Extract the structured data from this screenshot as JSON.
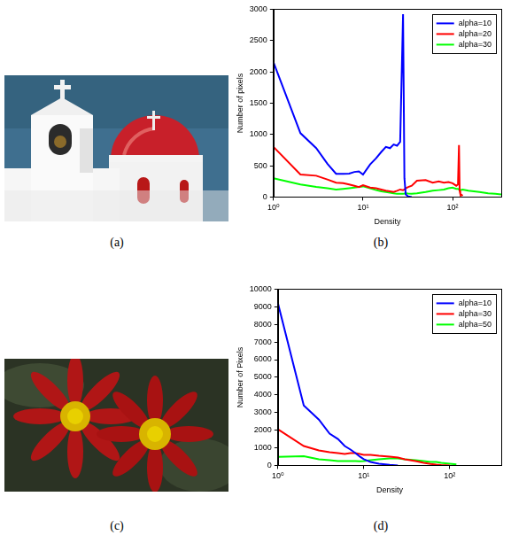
{
  "captions": [
    "(a)",
    "(b)",
    "(c)",
    "(d)"
  ],
  "chart_data": [
    {
      "type": "line",
      "log": "x",
      "grid": false,
      "legend": "upper right",
      "x_label": "Density",
      "y_label": "Number of pixels",
      "xlim": [
        1,
        350
      ],
      "ylim": [
        0,
        3000
      ],
      "xticks": [
        {
          "value": 1,
          "label": "10⁰"
        },
        {
          "value": 10,
          "label": "10¹"
        },
        {
          "value": 100,
          "label": "10²"
        }
      ],
      "yticks": [
        0,
        500,
        1000,
        1500,
        2000,
        2500,
        3000
      ],
      "x": [
        1,
        2,
        3,
        4,
        5,
        6,
        7,
        8,
        9,
        10,
        12,
        14,
        16,
        18,
        20,
        22,
        24,
        26,
        28,
        29,
        30,
        32,
        35,
        40,
        50,
        60,
        70,
        80,
        90,
        100,
        110,
        115,
        118,
        120,
        122,
        130,
        150,
        200,
        250,
        300,
        350
      ],
      "series": [
        {
          "name": "alpha=10",
          "color": "#0000ff",
          "values": [
            2150,
            1020,
            780,
            530,
            370,
            370,
            375,
            400,
            410,
            360,
            520,
            620,
            720,
            800,
            780,
            840,
            820,
            880,
            2920,
            300,
            40,
            10,
            0,
            null,
            null,
            null,
            null,
            null,
            null,
            null,
            null,
            null,
            null,
            null,
            null,
            null,
            null,
            null,
            null,
            null,
            null
          ]
        },
        {
          "name": "alpha=20",
          "color": "#ff0000",
          "values": [
            800,
            360,
            340,
            280,
            230,
            220,
            200,
            180,
            160,
            190,
            150,
            140,
            120,
            100,
            90,
            80,
            100,
            120,
            110,
            120,
            140,
            160,
            180,
            260,
            270,
            230,
            250,
            230,
            240,
            220,
            180,
            200,
            830,
            100,
            50,
            20,
            null,
            null,
            null,
            null,
            null
          ]
        },
        {
          "name": "alpha=30",
          "color": "#00ff00",
          "values": [
            300,
            200,
            160,
            140,
            120,
            130,
            140,
            150,
            160,
            170,
            140,
            110,
            90,
            80,
            70,
            60,
            50,
            50,
            50,
            55,
            60,
            55,
            50,
            60,
            80,
            100,
            110,
            120,
            140,
            150,
            130,
            130,
            120,
            110,
            110,
            120,
            100,
            80,
            60,
            50,
            40
          ]
        }
      ]
    },
    {
      "type": "line",
      "log": "x",
      "grid": false,
      "legend": "upper right",
      "x_label": "Density",
      "y_label": "Number of Pixels",
      "xlim": [
        1,
        400
      ],
      "ylim": [
        0,
        10000
      ],
      "xticks": [
        {
          "value": 1,
          "label": "10⁰"
        },
        {
          "value": 10,
          "label": "10¹"
        },
        {
          "value": 100,
          "label": "10²"
        }
      ],
      "yticks": [
        0,
        1000,
        2000,
        3000,
        4000,
        5000,
        6000,
        7000,
        8000,
        9000,
        10000
      ],
      "x": [
        1,
        2,
        3,
        4,
        5,
        6,
        7,
        8,
        9,
        10,
        12,
        15,
        20,
        25,
        30,
        40,
        50,
        60,
        70,
        80,
        100,
        120,
        150
      ],
      "series": [
        {
          "name": "alpha=10",
          "color": "#0000ff",
          "values": [
            9200,
            3400,
            2600,
            1800,
            1500,
            1100,
            900,
            700,
            500,
            350,
            200,
            100,
            30,
            0,
            null,
            null,
            null,
            null,
            null,
            null,
            null,
            null,
            null
          ]
        },
        {
          "name": "alpha=30",
          "color": "#ff0000",
          "values": [
            2050,
            1100,
            850,
            750,
            700,
            650,
            700,
            700,
            650,
            600,
            600,
            550,
            500,
            450,
            350,
            250,
            150,
            80,
            40,
            20,
            0,
            null,
            null
          ]
        },
        {
          "name": "alpha=50",
          "color": "#00ff00",
          "values": [
            480,
            520,
            350,
            300,
            250,
            250,
            250,
            250,
            230,
            250,
            300,
            350,
            400,
            400,
            350,
            300,
            250,
            200,
            200,
            150,
            100,
            60,
            null
          ]
        }
      ]
    }
  ]
}
